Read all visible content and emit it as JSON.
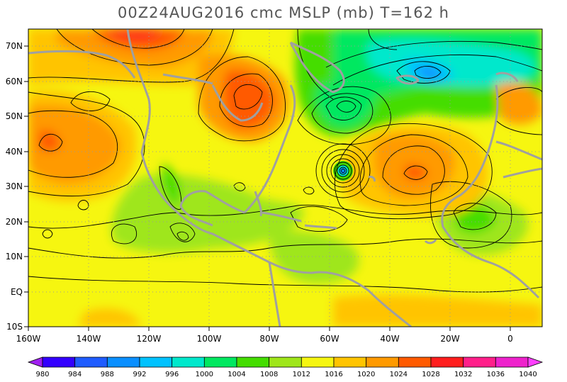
{
  "title": "00Z24AUG2016 cmc MSLP (mb) T=162 h",
  "map": {
    "lon_labels": [
      "160W",
      "140W",
      "120W",
      "100W",
      "80W",
      "60W",
      "40W",
      "20W",
      "0"
    ],
    "lat_labels": [
      "70N",
      "60N",
      "50N",
      "40N",
      "30N",
      "20N",
      "10N",
      "EQ",
      "10S"
    ],
    "colors": {
      "land_outline": "#a0a0a0",
      "grid": "#9a9a9a"
    },
    "pressure_centers": [
      {
        "label": "low",
        "lon": -55,
        "lat": 34,
        "value": 988
      },
      {
        "label": "low",
        "lon": -53,
        "lat": 53,
        "value": 996
      },
      {
        "label": "low",
        "lon": -25,
        "lat": 62,
        "value": 992
      },
      {
        "label": "high",
        "lon": -32,
        "lat": 33,
        "value": 1028
      },
      {
        "label": "high",
        "lon": -154,
        "lat": 42,
        "value": 1028
      },
      {
        "label": "high",
        "lon": -92,
        "lat": 50,
        "value": 1028
      },
      {
        "label": "high",
        "lon": -130,
        "lat": 72,
        "value": 1032
      }
    ]
  },
  "colorbar": {
    "levels": [
      "980",
      "984",
      "988",
      "992",
      "996",
      "1000",
      "1004",
      "1008",
      "1012",
      "1016",
      "1020",
      "1024",
      "1028",
      "1032",
      "1036",
      "1040"
    ],
    "colors": [
      "#a020f0",
      "#3300ff",
      "#1f5cff",
      "#0a8fff",
      "#00c2ff",
      "#00e8cc",
      "#00e860",
      "#44dd00",
      "#9fe61a",
      "#f6f610",
      "#ffc400",
      "#ff9a00",
      "#ff5a00",
      "#ff1e1e",
      "#ff1f8a",
      "#ee22cc",
      "#ff40ff"
    ]
  }
}
